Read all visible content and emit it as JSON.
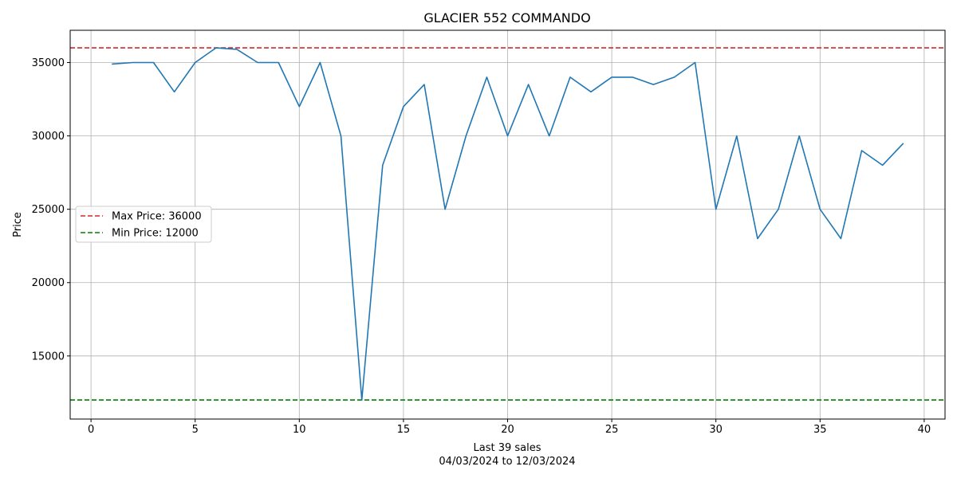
{
  "chart_data": {
    "type": "line",
    "title": "GLACIER 552 COMMANDO",
    "xlabel": "Last 39 sales",
    "xlabel_sub": "04/03/2024 to 12/03/2024",
    "ylabel": "Price",
    "xlim": [
      -1,
      41
    ],
    "ylim": [
      10700,
      37200
    ],
    "xticks": [
      0,
      5,
      10,
      15,
      20,
      25,
      30,
      35,
      40
    ],
    "yticks": [
      15000,
      20000,
      25000,
      30000,
      35000
    ],
    "grid": true,
    "legend_position": "center-left",
    "series": [
      {
        "color": "#1f77b4",
        "x": [
          1,
          2,
          3,
          4,
          5,
          6,
          7,
          8,
          9,
          10,
          11,
          12,
          13,
          14,
          15,
          16,
          17,
          18,
          19,
          20,
          21,
          22,
          23,
          24,
          25,
          26,
          27,
          28,
          29,
          30,
          31,
          32,
          33,
          34,
          35,
          36,
          37,
          38,
          39
        ],
        "values": [
          34900,
          35000,
          35000,
          33000,
          35000,
          36000,
          35900,
          35000,
          35000,
          32000,
          35000,
          30000,
          12000,
          28000,
          32000,
          33500,
          25000,
          30000,
          34000,
          30000,
          33500,
          30000,
          34000,
          33000,
          34000,
          34000,
          33500,
          34000,
          35000,
          25000,
          30000,
          23000,
          25000,
          30000,
          25000,
          23000,
          29000,
          28000,
          29500
        ]
      }
    ],
    "reference_lines": [
      {
        "name": "Max Price: 36000",
        "y": 36000,
        "color": "#d62728",
        "style": "dashed"
      },
      {
        "name": "Min Price: 12000",
        "y": 12000,
        "color": "#008000",
        "style": "dashed"
      }
    ]
  }
}
